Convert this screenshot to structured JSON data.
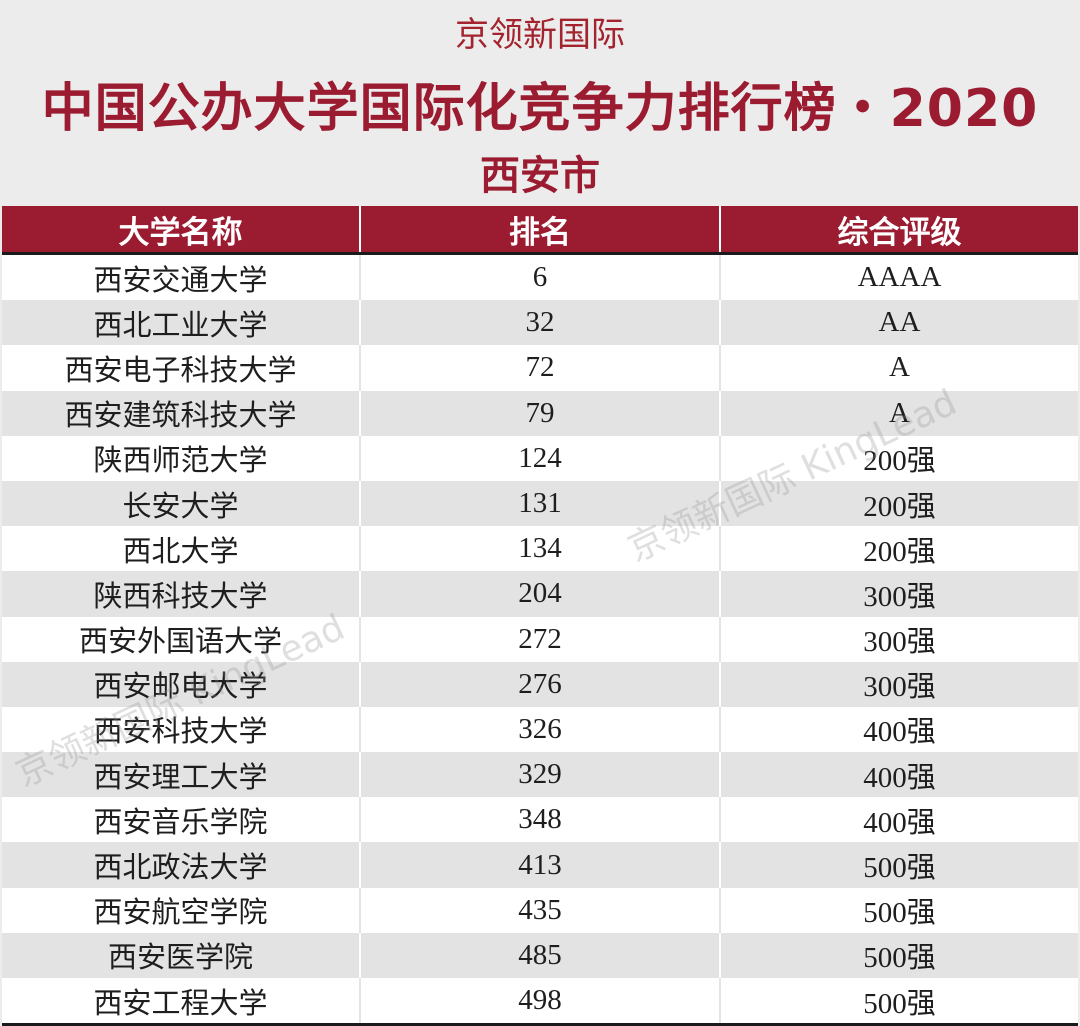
{
  "brand": "京领新国际",
  "title": "中国公办大学国际化竞争力排行榜・2020",
  "subtitle": "西安市",
  "table": {
    "headers": [
      "大学名称",
      "排名",
      "综合评级"
    ],
    "rows": [
      [
        "西安交通大学",
        "6",
        "AAAA"
      ],
      [
        "西北工业大学",
        "32",
        "AA"
      ],
      [
        "西安电子科技大学",
        "72",
        "A"
      ],
      [
        "西安建筑科技大学",
        "79",
        "A"
      ],
      [
        "陕西师范大学",
        "124",
        "200强"
      ],
      [
        "长安大学",
        "131",
        "200强"
      ],
      [
        "西北大学",
        "134",
        "200强"
      ],
      [
        "陕西科技大学",
        "204",
        "300强"
      ],
      [
        "西安外国语大学",
        "272",
        "300强"
      ],
      [
        "西安邮电大学",
        "276",
        "300强"
      ],
      [
        "西安科技大学",
        "326",
        "400强"
      ],
      [
        "西安理工大学",
        "329",
        "400强"
      ],
      [
        "西安音乐学院",
        "348",
        "400强"
      ],
      [
        "西北政法大学",
        "413",
        "500强"
      ],
      [
        "西安航空学院",
        "435",
        "500强"
      ],
      [
        "西安医学院",
        "485",
        "500强"
      ],
      [
        "西安工程大学",
        "498",
        "500强"
      ]
    ]
  },
  "watermark": "京领新国际 KingLead",
  "colors": {
    "accent": "#9b1b30",
    "background": "#ececec",
    "row_alt": "#e3e3e3"
  }
}
